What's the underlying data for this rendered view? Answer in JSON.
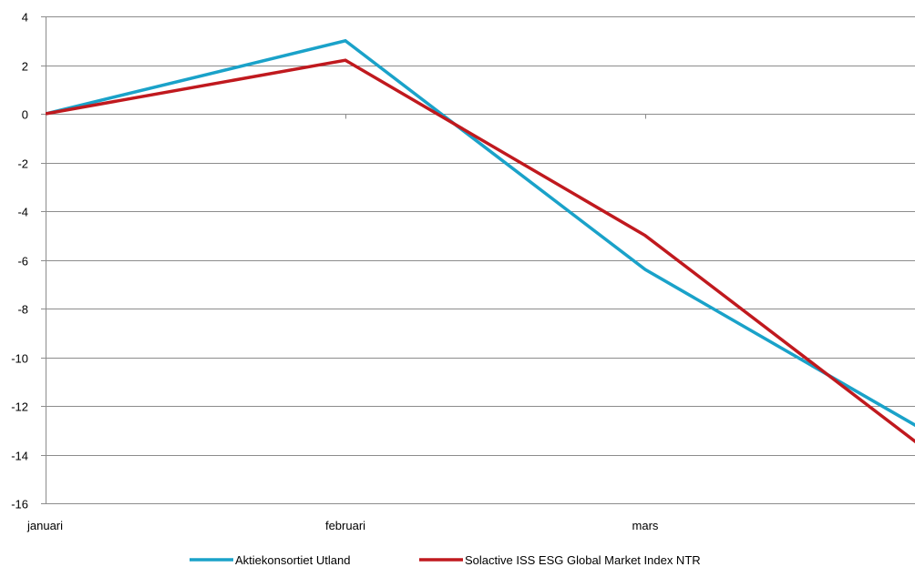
{
  "chart_data": {
    "type": "line",
    "title": "",
    "xlabel": "",
    "ylabel": "",
    "x": [
      0,
      1,
      2,
      3
    ],
    "categories": [
      "januari",
      "februari",
      "mars",
      ""
    ],
    "ylim": [
      -16,
      4
    ],
    "yticks": [
      4,
      2,
      0,
      -2,
      -4,
      -6,
      -8,
      -10,
      -12,
      -14,
      -16
    ],
    "grid": true,
    "legend_position": "bottom",
    "series": [
      {
        "name": "Aktiekonsortiet Utland",
        "color": "#1aa2c9",
        "values": [
          0.0,
          3.0,
          -6.4,
          -13.5
        ]
      },
      {
        "name": "Solactive ISS ESG Global Market Index NTR",
        "color": "#c0191e",
        "values": [
          0.0,
          2.2,
          -5.0,
          -14.4
        ]
      }
    ]
  }
}
